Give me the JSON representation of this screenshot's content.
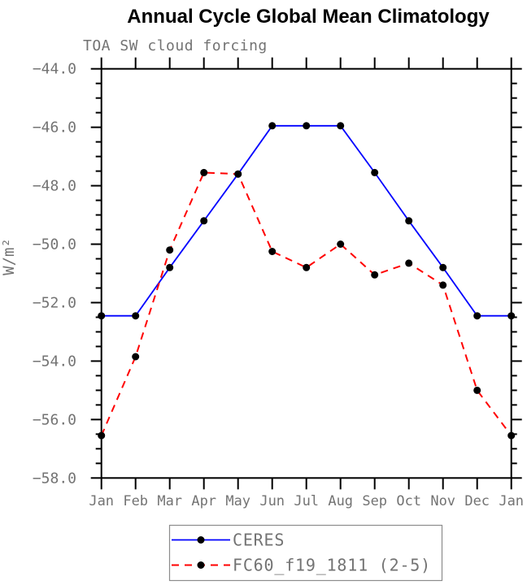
{
  "title": "Annual Cycle Global Mean Climatology",
  "subtitle": "TOA SW cloud forcing",
  "colors": {
    "ceres_line": "#0000ff",
    "model_line": "#ff0000",
    "marker": "#000000",
    "axis": "#000000",
    "label_gray": "#737373",
    "legend_border": "#8c8c8c"
  },
  "chart_data": {
    "type": "line",
    "title": "Annual Cycle Global Mean Climatology",
    "subtitle": "TOA SW cloud forcing",
    "xlabel": "",
    "ylabel": "W/m²",
    "x_categories": [
      "Jan",
      "Feb",
      "Mar",
      "Apr",
      "May",
      "Jun",
      "Jul",
      "Aug",
      "Sep",
      "Oct",
      "Nov",
      "Dec",
      "Jan"
    ],
    "ylim": [
      -58.0,
      -44.0
    ],
    "ytick_interval": 2.0,
    "ytick_minor_interval": 0.5,
    "ytick_labels": [
      "-44.0",
      "-46.0",
      "-48.0",
      "-50.0",
      "-52.0",
      "-54.0",
      "-56.0",
      "-58.0"
    ],
    "grid": "off",
    "legend_position": "bottom",
    "series": [
      {
        "name": "CERES",
        "color": "#0000ff",
        "line_style": "solid",
        "marker": "filled-circle",
        "marker_color": "#000000",
        "values": [
          -52.45,
          -52.45,
          -50.8,
          -49.2,
          -47.6,
          -45.95,
          -45.95,
          -45.95,
          -47.55,
          -49.2,
          -50.8,
          -52.45,
          -52.45
        ]
      },
      {
        "name": "FC60_f19_1811 (2-5)",
        "color": "#ff0000",
        "line_style": "dashed",
        "marker": "filled-circle",
        "marker_color": "#000000",
        "values": [
          -56.55,
          -53.85,
          -50.2,
          -47.55,
          -47.6,
          -50.25,
          -50.8,
          -50.0,
          -51.05,
          -50.65,
          -51.4,
          -55.0,
          -56.55
        ]
      }
    ]
  }
}
